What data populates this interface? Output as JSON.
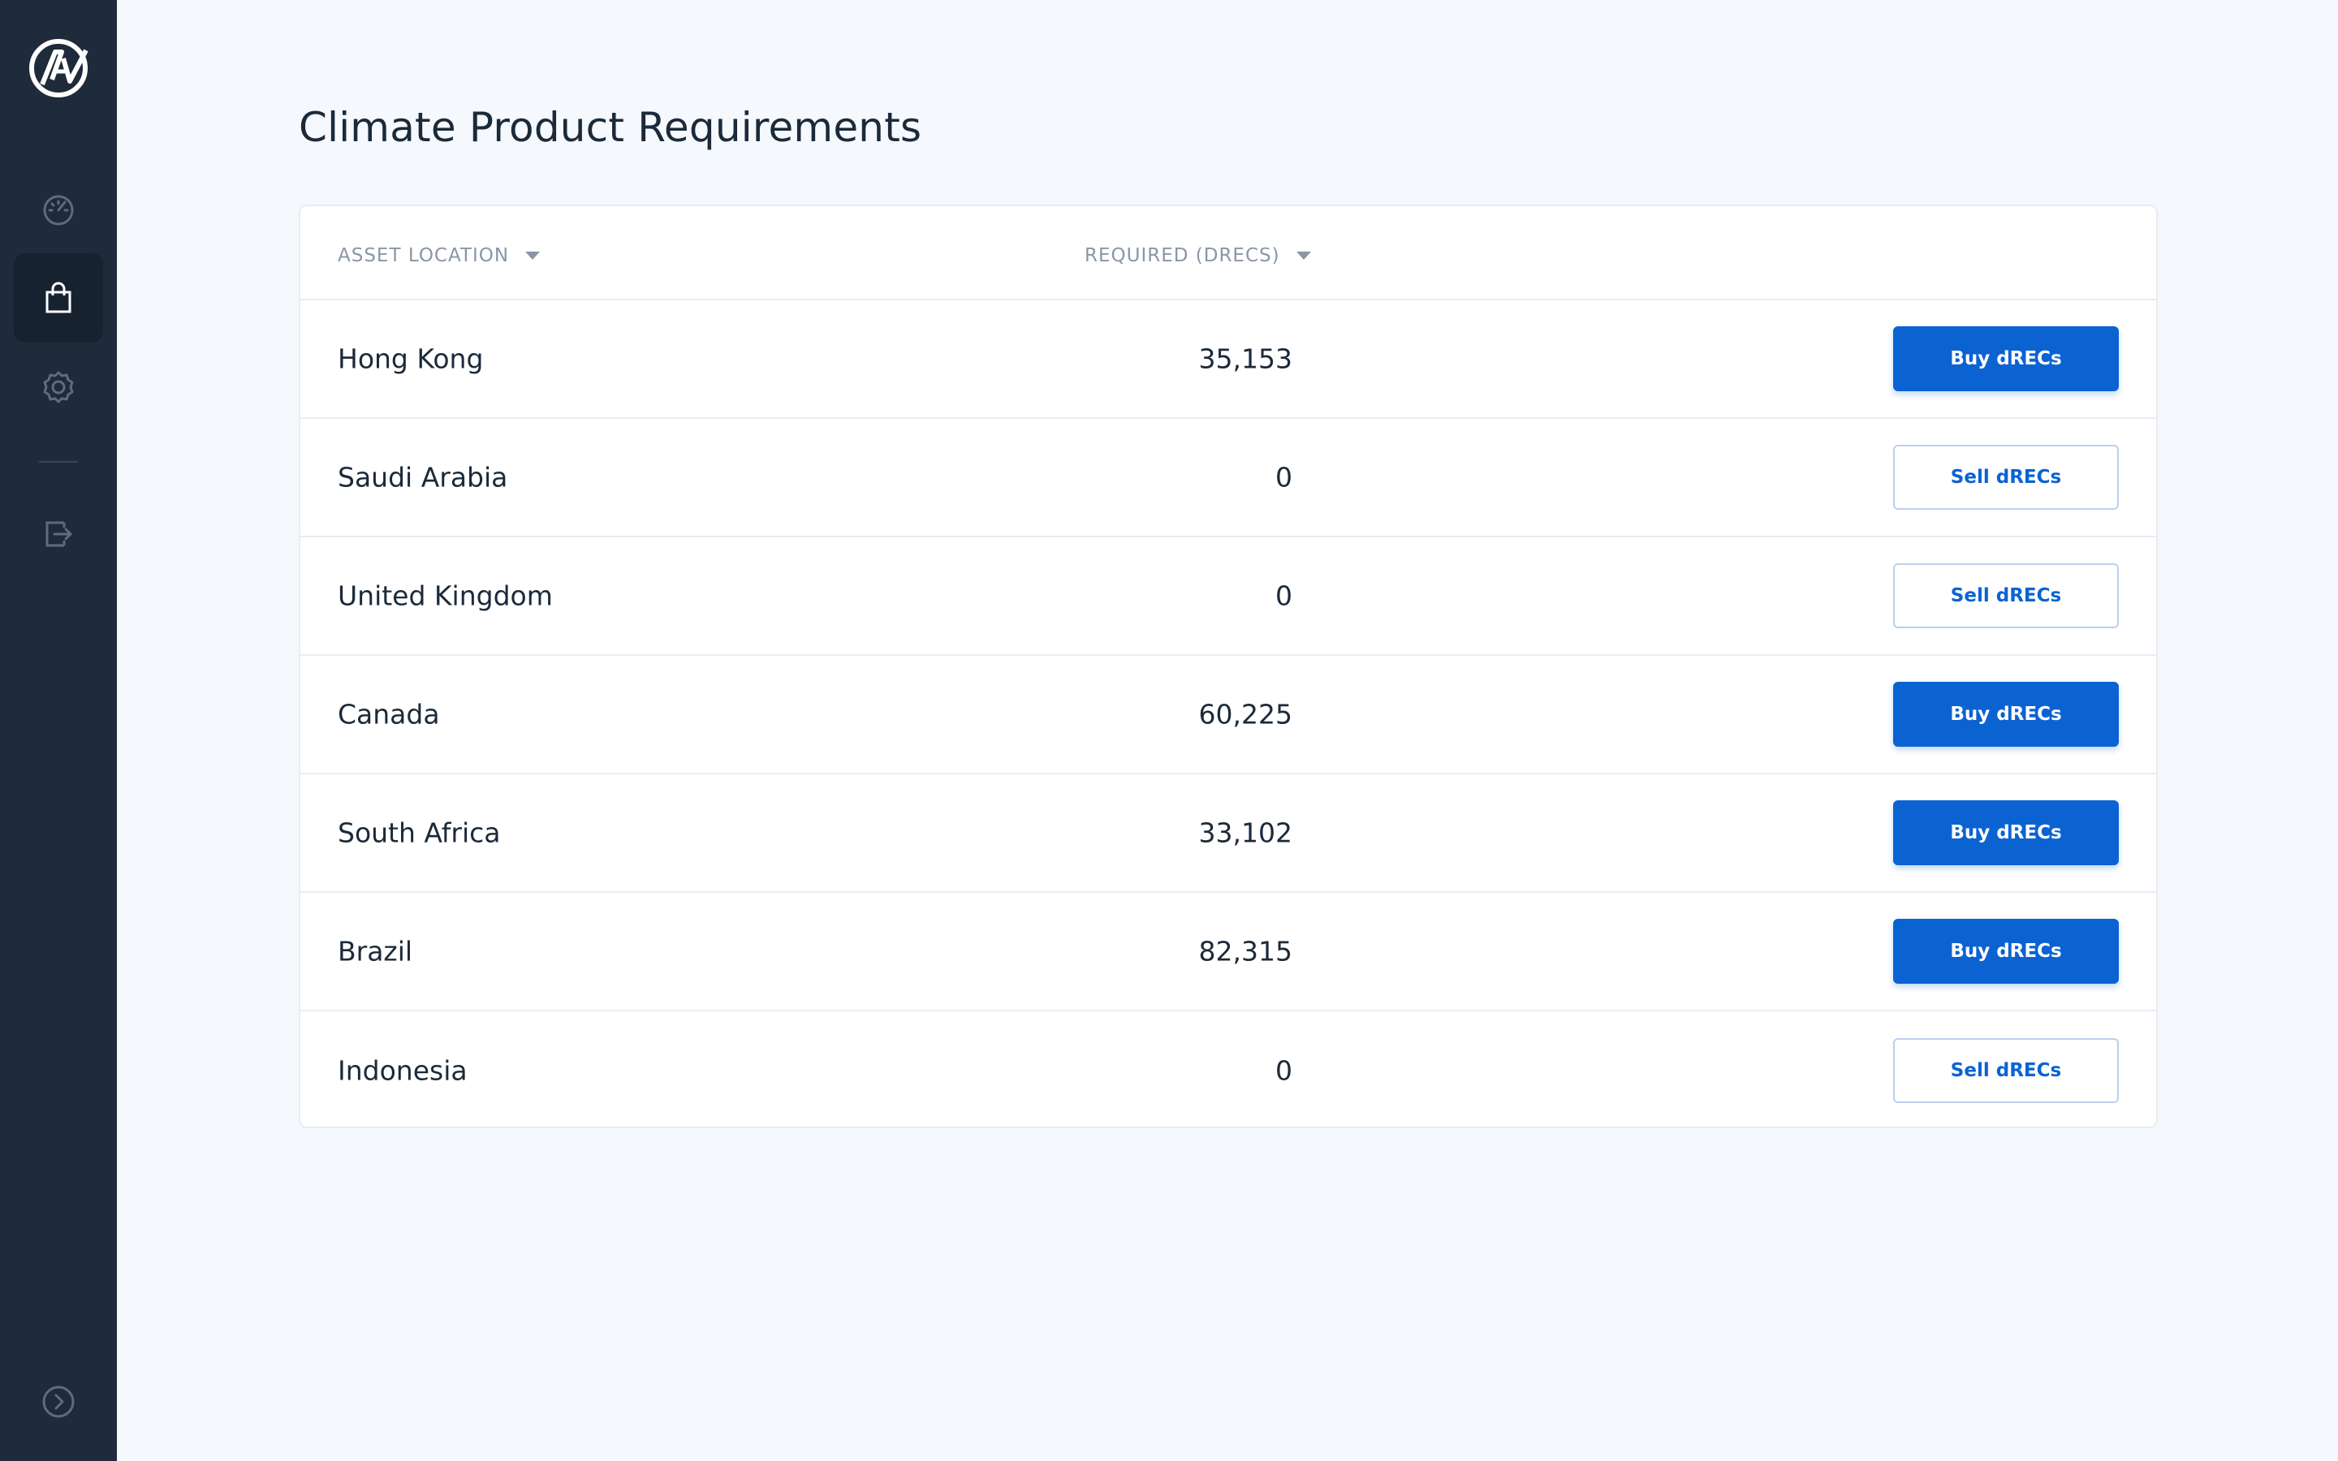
{
  "sidebar": {
    "logo_icon": "av-logo-icon",
    "nav": [
      {
        "name": "dashboard",
        "icon": "gauge-icon",
        "active": false
      },
      {
        "name": "shop",
        "icon": "shopping-bag-icon",
        "active": true
      },
      {
        "name": "settings",
        "icon": "gear-icon",
        "active": false
      },
      {
        "name": "logout",
        "icon": "exit-icon",
        "active": false
      }
    ],
    "expand_icon": "chevron-right-circle-icon"
  },
  "page": {
    "title": "Climate Product Requirements"
  },
  "table": {
    "columns": {
      "location": "ASSET LOCATION",
      "required": "REQUIRED (DRECS)"
    },
    "rows": [
      {
        "location": "Hong Kong",
        "required": "35,153",
        "action": "Buy dRECs",
        "action_type": "buy"
      },
      {
        "location": "Saudi Arabia",
        "required": "0",
        "action": "Sell dRECs",
        "action_type": "sell"
      },
      {
        "location": "United Kingdom",
        "required": "0",
        "action": "Sell dRECs",
        "action_type": "sell"
      },
      {
        "location": "Canada",
        "required": "60,225",
        "action": "Buy dRECs",
        "action_type": "buy"
      },
      {
        "location": "South Africa",
        "required": "33,102",
        "action": "Buy dRECs",
        "action_type": "buy"
      },
      {
        "location": "Brazil",
        "required": "82,315",
        "action": "Buy dRECs",
        "action_type": "buy"
      },
      {
        "location": "Indonesia",
        "required": "0",
        "action": "Sell dRECs",
        "action_type": "sell"
      }
    ]
  },
  "colors": {
    "sidebar_bg": "#1f2a3a",
    "accent": "#0b63d2",
    "page_bg": "#f5f8fc"
  }
}
